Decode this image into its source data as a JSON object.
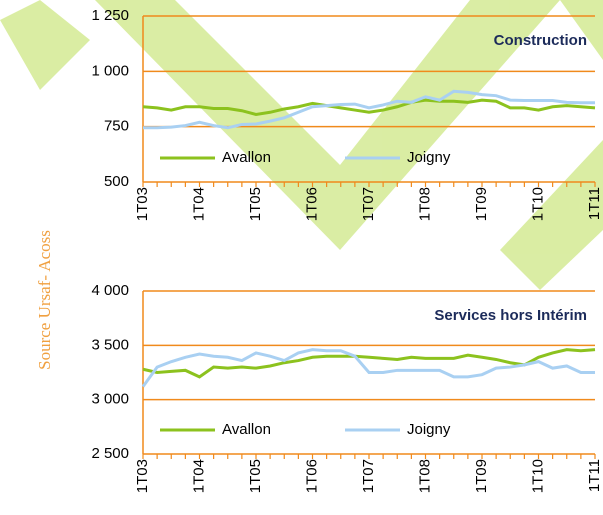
{
  "source": "Source Ursaf- Acoss",
  "chart_data": [
    {
      "type": "line",
      "title": "Construction",
      "categories": [
        "1T03",
        null,
        null,
        null,
        "1T04",
        null,
        null,
        null,
        "1T05",
        null,
        null,
        null,
        "1T06",
        null,
        null,
        null,
        "1T07",
        null,
        null,
        null,
        "1T08",
        null,
        null,
        null,
        "1T09",
        null,
        null,
        null,
        "1T10",
        null,
        null,
        null,
        "1T11"
      ],
      "series": [
        {
          "name": "Avallon",
          "color": "#8cc21e",
          "values": [
            840,
            835,
            825,
            840,
            840,
            832,
            832,
            822,
            805,
            815,
            830,
            840,
            855,
            845,
            835,
            825,
            815,
            825,
            840,
            860,
            870,
            865,
            865,
            860,
            870,
            865,
            835,
            835,
            825,
            840,
            845,
            840,
            835
          ]
        },
        {
          "name": "Joigny",
          "color": "#a9d0f2",
          "values": [
            745,
            745,
            748,
            755,
            770,
            755,
            745,
            760,
            762,
            775,
            790,
            815,
            840,
            845,
            850,
            852,
            835,
            848,
            865,
            860,
            885,
            870,
            910,
            905,
            895,
            890,
            870,
            868,
            868,
            868,
            860,
            858,
            858
          ]
        }
      ],
      "ylim": [
        500,
        1250
      ],
      "yticks": [
        500,
        750,
        {
          "value": 1000,
          "label": "1 000"
        },
        {
          "value": 1250,
          "label": "1 250"
        }
      ],
      "grid": true,
      "legend": "lower left"
    },
    {
      "type": "line",
      "title": "Services hors Intérim",
      "categories": [
        "1T03",
        null,
        null,
        null,
        "1T04",
        null,
        null,
        null,
        "1T05",
        null,
        null,
        null,
        "1T06",
        null,
        null,
        null,
        "1T07",
        null,
        null,
        null,
        "1T08",
        null,
        null,
        null,
        "1T09",
        null,
        null,
        null,
        "1T10",
        null,
        null,
        null,
        "1T11"
      ],
      "series": [
        {
          "name": "Avallon",
          "color": "#8cc21e",
          "values": [
            3280,
            3250,
            3260,
            3270,
            3210,
            3300,
            3290,
            3300,
            3290,
            3310,
            3340,
            3360,
            3390,
            3400,
            3400,
            3400,
            3390,
            3380,
            3370,
            3390,
            3380,
            3380,
            3380,
            3410,
            3390,
            3370,
            3340,
            3320,
            3390,
            3430,
            3460,
            3450,
            3460
          ]
        },
        {
          "name": "Joigny",
          "color": "#a9d0f2",
          "values": [
            3120,
            3300,
            3350,
            3390,
            3420,
            3400,
            3390,
            3360,
            3430,
            3400,
            3360,
            3430,
            3460,
            3450,
            3450,
            3400,
            3250,
            3250,
            3270,
            3270,
            3270,
            3270,
            3210,
            3210,
            3230,
            3290,
            3300,
            3320,
            3350,
            3290,
            3310,
            3250,
            3250
          ]
        }
      ],
      "ylim": [
        2500,
        4000
      ],
      "yticks": [
        {
          "value": 2500,
          "label": "2 500"
        },
        {
          "value": 3000,
          "label": "3 000"
        },
        {
          "value": 3500,
          "label": "3 500"
        },
        {
          "value": 4000,
          "label": "4 000"
        }
      ],
      "grid": true,
      "legend": "lower left"
    }
  ]
}
